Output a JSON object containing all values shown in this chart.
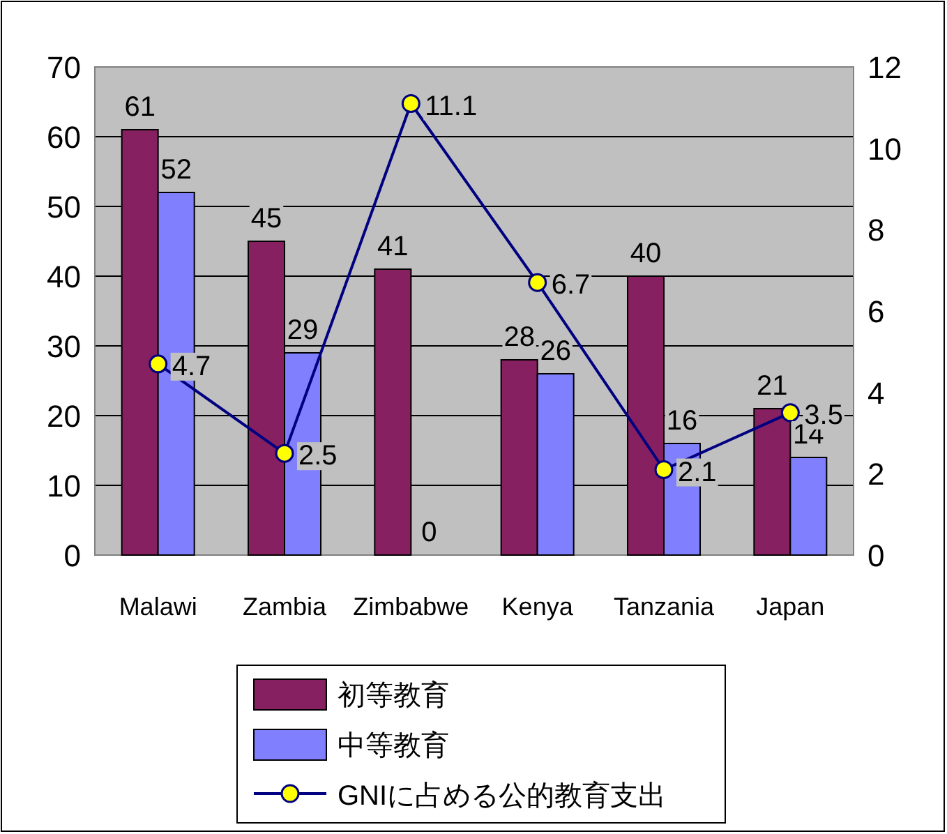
{
  "chart_data": {
    "type": "bar",
    "categories": [
      "Malawi",
      "Zambia",
      "Zimbabwe",
      "Kenya",
      "Tanzania",
      "Japan"
    ],
    "series": [
      {
        "name": "初等教育",
        "color": "#862060",
        "values": [
          61,
          45,
          41,
          28,
          40,
          21
        ]
      },
      {
        "name": "中等教育",
        "color": "#8080ff",
        "values": [
          52,
          29,
          0,
          26,
          16,
          14
        ]
      },
      {
        "name": "GNIに占める公的教育支出",
        "type": "line",
        "axis": "y2",
        "color": "#000080",
        "marker": "circle",
        "values": [
          4.7,
          2.5,
          11.1,
          6.7,
          2.1,
          3.5
        ]
      }
    ],
    "ylim": [
      0,
      70
    ],
    "yticks": [
      0,
      10,
      20,
      30,
      40,
      50,
      60,
      70
    ],
    "y2lim": [
      0,
      12
    ],
    "y2ticks": [
      0,
      2,
      4,
      6,
      8,
      10,
      12
    ],
    "grid": "y",
    "legend": "bottom",
    "data_labels": true
  }
}
